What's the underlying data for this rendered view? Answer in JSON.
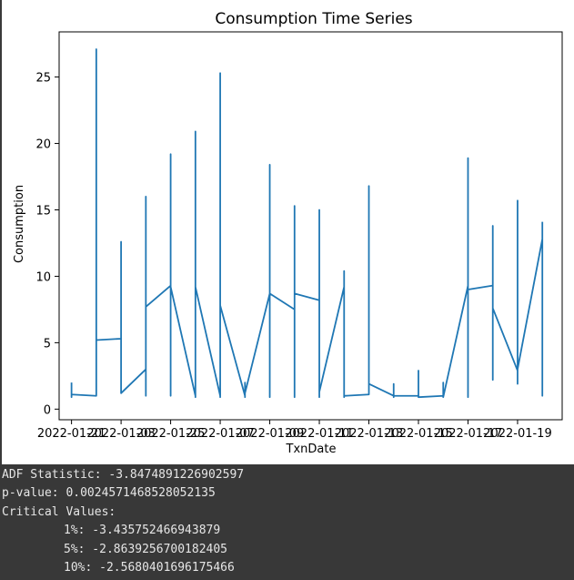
{
  "chart_data": {
    "type": "line",
    "title": "Consumption Time Series",
    "xlabel": "TxnDate",
    "ylabel": "Consumption",
    "ylim": [
      -0.8,
      28.4
    ],
    "xlim": [
      -0.5,
      19.8
    ],
    "grid": false,
    "line_color": "#1f77b4",
    "yticks": [
      0,
      5,
      10,
      15,
      20,
      25
    ],
    "xtick_positions": [
      0,
      2,
      4,
      6,
      8,
      10,
      12,
      14,
      16,
      18
    ],
    "xtick_labels": [
      "2022-01-21",
      "2022-01-03",
      "2022-01-25",
      "2022-01-07",
      "2022-01-09",
      "2022-01-11",
      "2022-01-13",
      "2022-01-15",
      "2022-01-17",
      "2022-01-19"
    ],
    "x": [
      0,
      0,
      0,
      1,
      1,
      1,
      2,
      2,
      2,
      3,
      3,
      3,
      3,
      3,
      3,
      4,
      4,
      4,
      4,
      4,
      4,
      5,
      5,
      5,
      5,
      5,
      6,
      6,
      6,
      6,
      6,
      7,
      7,
      7,
      7,
      8,
      8,
      8,
      8,
      8,
      9,
      9,
      9,
      9,
      9,
      10,
      10,
      10,
      10,
      10,
      11,
      11,
      11,
      11,
      11,
      12,
      12,
      12,
      13,
      13,
      13,
      13,
      14,
      14,
      14,
      15,
      15,
      15,
      16,
      16,
      16,
      16,
      16,
      17,
      17,
      17,
      17,
      17,
      18,
      18,
      18,
      18,
      18,
      19,
      19,
      19
    ],
    "y": [
      2.0,
      0.9,
      1.1,
      1.0,
      27.1,
      5.2,
      5.3,
      12.6,
      1.2,
      3.0,
      1.0,
      16.0,
      1.0,
      15.5,
      7.7,
      9.3,
      1.0,
      19.2,
      1.0,
      17.5,
      9.2,
      1.0,
      20.9,
      0.9,
      18.5,
      9.2,
      1.0,
      25.3,
      0.9,
      20.0,
      7.8,
      1.0,
      2.0,
      0.9,
      1.2,
      8.7,
      0.9,
      18.4,
      0.9,
      8.7,
      7.5,
      0.9,
      15.3,
      0.9,
      8.7,
      8.2,
      0.9,
      15.0,
      1.0,
      1.3,
      9.2,
      10.4,
      0.9,
      10.2,
      1.0,
      1.1,
      16.8,
      1.9,
      1.0,
      1.9,
      0.9,
      1.0,
      1.0,
      2.9,
      0.9,
      1.0,
      2.0,
      0.9,
      9.3,
      0.9,
      18.9,
      1.0,
      9.0,
      9.3,
      2.2,
      13.8,
      2.5,
      7.6,
      2.9,
      1.9,
      15.7,
      2.0,
      3.0,
      12.8,
      1.0,
      14.1
    ]
  },
  "console": {
    "line1": "ADF Statistic: -3.8474891226902597",
    "line2": "p-value: 0.0024571468528052135",
    "line3": "Critical Values:",
    "line4": "1%: -3.435752466943879",
    "line5": "5%: -2.8639256700182405",
    "line6": "10%: -2.5680401696175466"
  }
}
